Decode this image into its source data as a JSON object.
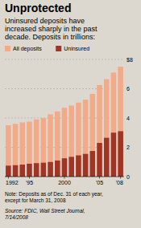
{
  "chart_data": {
    "type": "bar",
    "title": "Unprotected",
    "subtitle": "Uninsured deposits have\nincreased sharply in the past\ndecade. Deposits in trillions:",
    "categories": [
      "1992",
      null,
      null,
      "'95",
      null,
      null,
      null,
      null,
      "2000",
      null,
      null,
      null,
      null,
      "'05",
      null,
      null,
      "'08"
    ],
    "series": [
      {
        "name": "All deposits",
        "color": "#f2aa88",
        "values": [
          3.5,
          3.6,
          3.7,
          3.75,
          3.9,
          4.0,
          4.25,
          4.45,
          4.7,
          4.85,
          5.05,
          5.25,
          5.65,
          6.25,
          6.65,
          7.1,
          7.5
        ]
      },
      {
        "name": "Uninsured",
        "color": "#a03525",
        "values": [
          0.75,
          0.78,
          0.82,
          0.88,
          0.92,
          0.95,
          1.0,
          1.1,
          1.25,
          1.35,
          1.45,
          1.55,
          1.75,
          2.3,
          2.65,
          3.0,
          3.1
        ]
      }
    ],
    "ylim": [
      0,
      8
    ],
    "yticks": [
      0,
      2,
      4,
      6,
      {
        "value": 8,
        "label": "$8"
      }
    ],
    "grid": true,
    "legend": "top",
    "note": "Note: Deposits as of Dec. 31 of each year,\nexcept for March 31, 2008",
    "source": "Source: FDIC, Wall Street Journal,\n7/14/2008"
  }
}
